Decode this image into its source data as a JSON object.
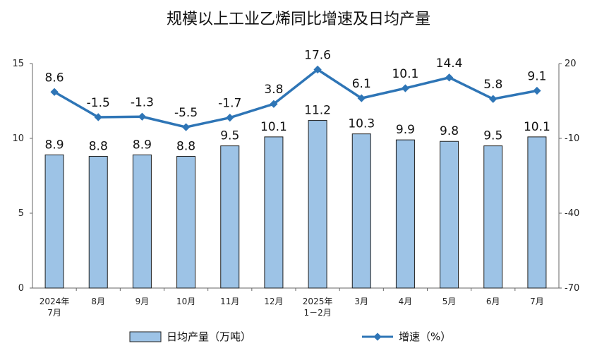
{
  "chart_data": {
    "type": "bar",
    "title": "规模以上工业乙烯同比增速及日均产量",
    "categories": [
      [
        "2024年",
        "7月"
      ],
      [
        "8月"
      ],
      [
        "9月"
      ],
      [
        "10月"
      ],
      [
        "11月"
      ],
      [
        "12月"
      ],
      [
        "2025年",
        "1－2月"
      ],
      [
        "3月"
      ],
      [
        "4月"
      ],
      [
        "5月"
      ],
      [
        "6月"
      ],
      [
        "7月"
      ]
    ],
    "series": [
      {
        "name": "日均产量（万吨）",
        "type": "bar",
        "axis": "left",
        "color": "#9DC3E6",
        "border_color": "#1f1f1f",
        "values": [
          8.9,
          8.8,
          8.9,
          8.8,
          9.5,
          10.1,
          11.2,
          10.3,
          9.9,
          9.8,
          9.5,
          10.1
        ]
      },
      {
        "name": "增速（%）",
        "type": "line",
        "axis": "right",
        "color": "#2E75B6",
        "values": [
          8.6,
          -1.5,
          -1.3,
          -5.5,
          -1.7,
          3.8,
          17.6,
          6.1,
          10.1,
          14.4,
          5.8,
          9.1
        ]
      }
    ],
    "y_left": {
      "min": 0,
      "max": 15,
      "ticks": [
        0,
        5,
        10,
        15
      ]
    },
    "y_right": {
      "min": -70,
      "max": 20,
      "ticks": [
        -70,
        -40,
        -10,
        20
      ]
    },
    "grid": false,
    "legend_position": "bottom"
  }
}
